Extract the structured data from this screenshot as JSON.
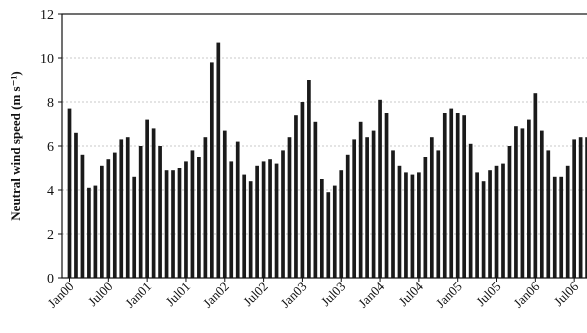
{
  "chart_data": {
    "type": "bar",
    "ylabel": "Neutral wind speed (m s⁻¹)",
    "ylim": [
      0,
      12
    ],
    "yticks": [
      0,
      2,
      4,
      6,
      8,
      10,
      12
    ],
    "grid": true,
    "xtick_labels": [
      "Jan00",
      "Jul00",
      "Jan01",
      "Jul01",
      "Jan02",
      "Jul02",
      "Jan03",
      "Jul03",
      "Jan04",
      "Jul04",
      "Jan05",
      "Jul05",
      "Jan06",
      "Jul06"
    ],
    "bar_color": "#1a1a1a",
    "values": [
      7.7,
      6.6,
      5.6,
      4.1,
      4.2,
      5.1,
      5.4,
      5.7,
      6.3,
      6.4,
      4.6,
      6.0,
      7.2,
      6.8,
      6.0,
      4.9,
      4.9,
      5.0,
      5.3,
      5.8,
      5.5,
      6.4,
      9.8,
      10.7,
      6.7,
      5.3,
      6.2,
      4.7,
      4.4,
      5.1,
      5.3,
      5.4,
      5.2,
      5.8,
      6.4,
      7.4,
      8.0,
      9.0,
      7.1,
      4.5,
      3.9,
      4.2,
      4.9,
      5.6,
      6.3,
      7.1,
      6.4,
      6.7,
      8.1,
      7.5,
      5.8,
      5.1,
      4.8,
      4.7,
      4.8,
      5.5,
      6.4,
      5.8,
      7.5,
      7.7,
      7.5,
      7.4,
      6.1,
      4.8,
      4.4,
      4.9,
      5.1,
      5.2,
      6.0,
      6.9,
      6.8,
      7.2,
      8.4,
      6.7,
      5.8,
      4.6,
      4.6,
      5.1,
      6.3,
      6.4,
      6.4,
      7.0,
      5.7,
      5.5
    ]
  }
}
